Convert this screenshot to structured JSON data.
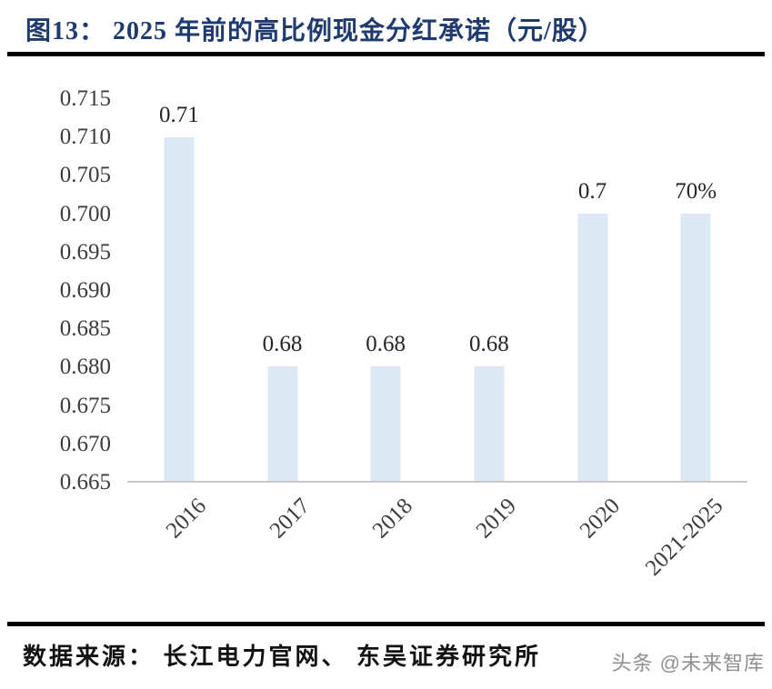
{
  "header": {
    "title": "图13：  2025 年前的高比例现金分红承诺（元/股）"
  },
  "chart_data": {
    "type": "bar",
    "title": "2025 年前的高比例现金分红承诺（元/股）",
    "categories": [
      "2016",
      "2017",
      "2018",
      "2019",
      "2020",
      "2021-2025"
    ],
    "values": [
      0.71,
      0.68,
      0.68,
      0.68,
      0.7,
      0.7
    ],
    "bar_labels": [
      "0.71",
      "0.68",
      "0.68",
      "0.68",
      "0.7",
      "70%"
    ],
    "xlabel": "",
    "ylabel": "",
    "ylim": [
      0.665,
      0.715
    ],
    "ytick_step": 0.005,
    "yticks": [
      "0.715",
      "0.710",
      "0.705",
      "0.700",
      "0.695",
      "0.690",
      "0.685",
      "0.680",
      "0.675",
      "0.670",
      "0.665"
    ],
    "grid": false,
    "legend": false,
    "bar_color": "#dce9f5",
    "axis_color": "#c8c8c8"
  },
  "footer": {
    "source": "数据来源：  长江电力官网、  东吴证券研究所",
    "watermark": "头条 @未来智库"
  }
}
